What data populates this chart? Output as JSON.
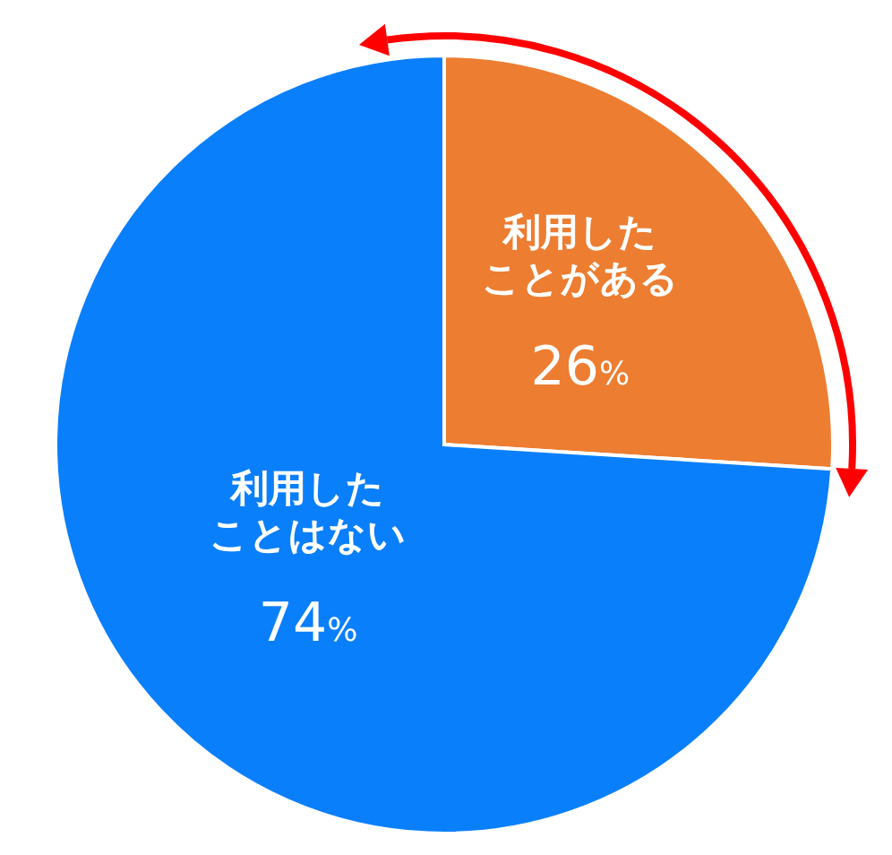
{
  "chart_data": {
    "type": "pie",
    "categories": [
      "利用したことがある",
      "利用したことはない"
    ],
    "values": [
      26,
      74
    ],
    "colors": [
      "#ed7d31",
      "#0a7ffb"
    ],
    "value_labels": [
      "26%",
      "74%"
    ]
  }
}
